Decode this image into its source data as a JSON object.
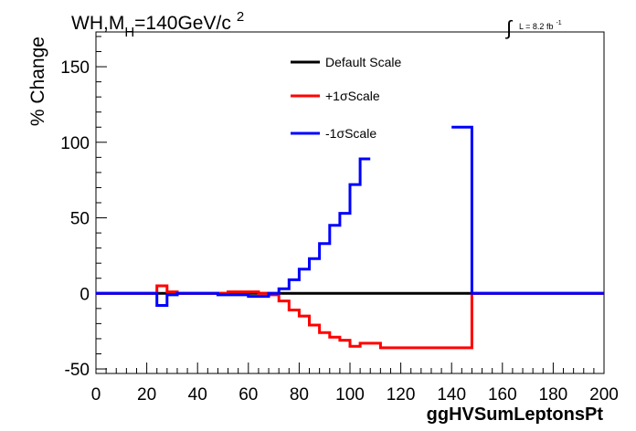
{
  "chart_data": {
    "type": "line",
    "title": "WH,M",
    "title_sub": "H",
    "title_rest": "=140GeV/c",
    "title_sup": "2",
    "lumi_label": "L = 8.2 fb",
    "lumi_sup": "-1",
    "integral_symbol": "∫",
    "xlabel": "ggHVSumLeptonsPt",
    "ylabel": "% Change",
    "xlim": [
      0,
      200
    ],
    "ylim": [
      -53,
      173
    ],
    "x_ticks": [
      0,
      20,
      40,
      60,
      80,
      100,
      120,
      140,
      160,
      180,
      200
    ],
    "y_ticks": [
      -50,
      0,
      50,
      100,
      150
    ],
    "step_x": [
      0,
      4,
      8,
      12,
      16,
      20,
      24,
      28,
      32,
      36,
      40,
      44,
      48,
      52,
      56,
      60,
      64,
      68,
      72,
      76,
      80,
      84,
      88,
      92,
      96,
      100,
      104,
      108,
      112,
      116,
      120,
      124,
      128,
      132,
      136,
      140,
      144,
      148,
      152,
      156,
      160,
      164,
      168,
      172,
      176,
      180,
      184,
      188,
      192,
      196,
      200
    ],
    "series": [
      {
        "name": "Default Scale",
        "color": "#000000",
        "values": [
          0,
          0,
          0,
          0,
          0,
          0,
          0,
          0,
          0,
          0,
          0,
          0,
          0,
          0,
          0,
          0,
          0,
          0,
          0,
          0,
          0,
          0,
          0,
          0,
          0,
          0,
          0,
          0,
          0,
          0,
          0,
          0,
          0,
          0,
          0,
          0,
          0,
          0,
          0,
          0,
          0,
          0,
          0,
          0,
          0,
          0,
          0,
          0,
          0,
          0
        ]
      },
      {
        "name": "+1σScale",
        "color": "#ff0000",
        "values": [
          0,
          0,
          0,
          0,
          0,
          0,
          5,
          1,
          0,
          0,
          0,
          0,
          0,
          1,
          1,
          1,
          0,
          -1,
          -5,
          -11,
          -15,
          -21,
          -26,
          -29,
          -31,
          -35,
          -33,
          -33,
          -36,
          -36,
          -36,
          -36,
          -36,
          -36,
          -36,
          -36,
          -36,
          0,
          0,
          0,
          0,
          0,
          0,
          0,
          0,
          0,
          0,
          0,
          0,
          0
        ]
      },
      {
        "name": "-1σScale",
        "color": "#0000ff",
        "values": [
          0,
          0,
          0,
          0,
          0,
          0,
          -8,
          -1,
          0,
          0,
          0,
          0,
          -1,
          -1,
          -1,
          -2,
          -2,
          0,
          3,
          9,
          16,
          23,
          33,
          45,
          53,
          72,
          89,
          null,
          null,
          null,
          null,
          null,
          null,
          null,
          null,
          110,
          110,
          0,
          0,
          0,
          0,
          0,
          0,
          0,
          0,
          0,
          0,
          0,
          0,
          0
        ]
      }
    ],
    "legend_position": "top-center",
    "grid": false
  }
}
